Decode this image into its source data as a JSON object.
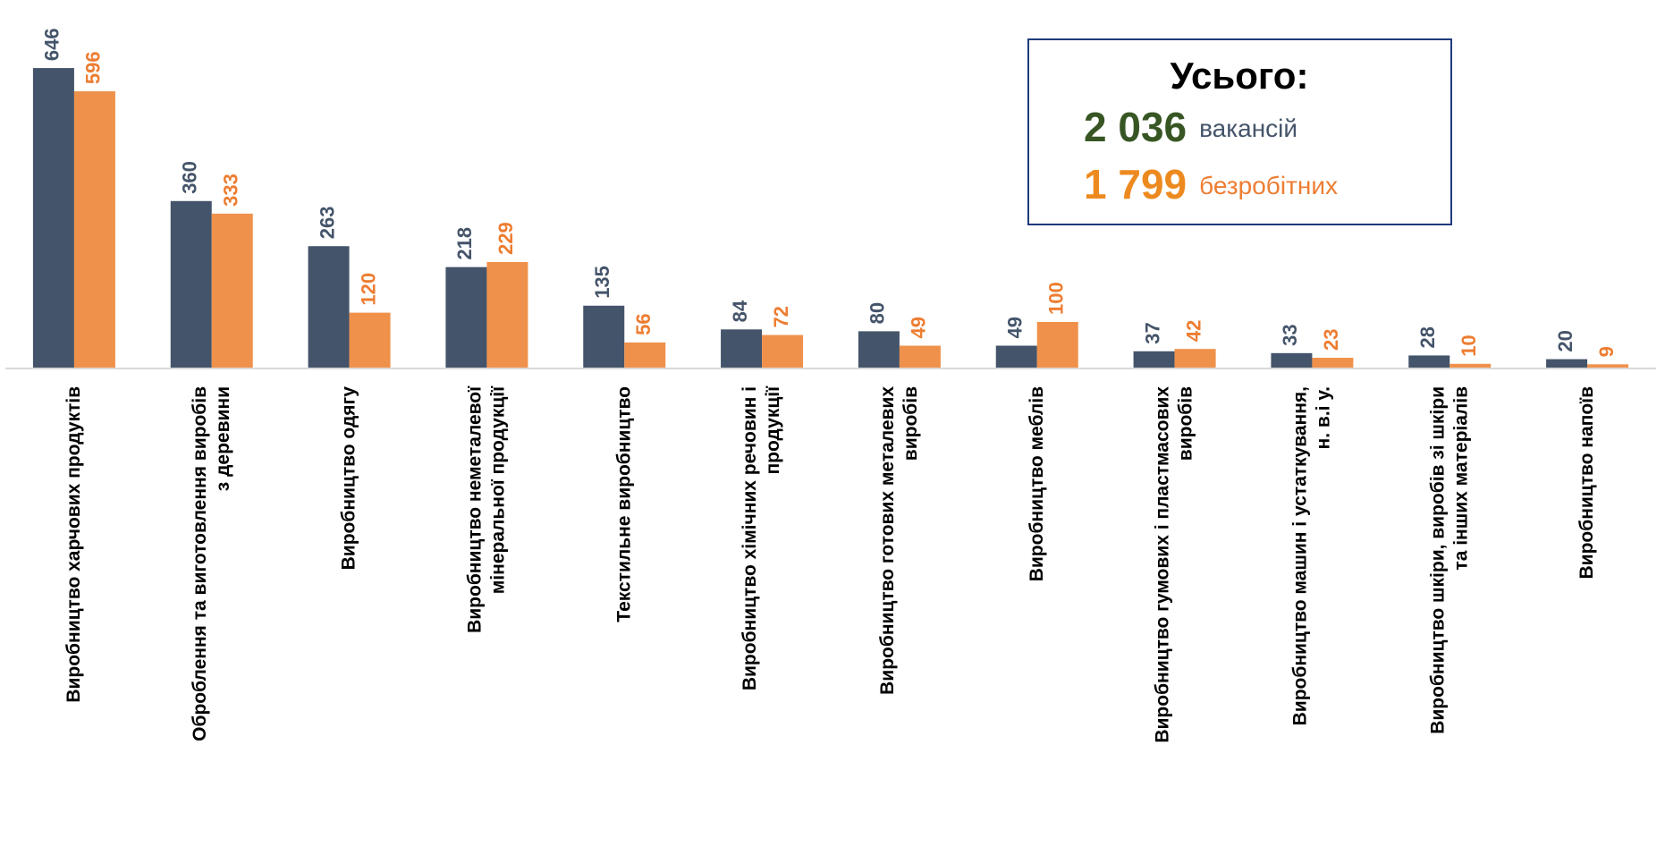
{
  "chart_data": {
    "type": "bar",
    "categories": [
      "Виробництво харчових продуктів",
      "Оброблення та виготовлення виробів\nз деревини",
      "Виробництво одягу",
      "Виробництво неметалевої\nмінеральної продукції",
      "Текстильне виробництво",
      "Виробництво хімічних речовин і\nпродукції",
      "Виробництво готових металевих\nвиробів",
      "Виробництво меблів",
      "Виробництво гумових і пластмасових\nвиробів",
      "Виробництво машин і устаткування,\nн. в.і у.",
      "Виробництво шкіри, виробів зі шкіри\nта інших матеріалів",
      "Виробництво напоїв"
    ],
    "series": [
      {
        "name": "вакансій",
        "color": "#44546a",
        "label_color": "#44546a",
        "total": 2036,
        "total_label": "2 036",
        "total_color": "#375623",
        "values": [
          646,
          360,
          263,
          218,
          135,
          84,
          80,
          49,
          37,
          33,
          28,
          20
        ]
      },
      {
        "name": "безробітних",
        "color": "#f0914b",
        "label_color": "#ed7d31",
        "total": 1799,
        "total_label": "1 799",
        "total_color": "#ed8a1f",
        "values": [
          596,
          333,
          120,
          229,
          56,
          72,
          49,
          100,
          42,
          23,
          10,
          9
        ]
      }
    ],
    "ylim": [
      0,
      700
    ],
    "summary_title": "Усього:"
  }
}
